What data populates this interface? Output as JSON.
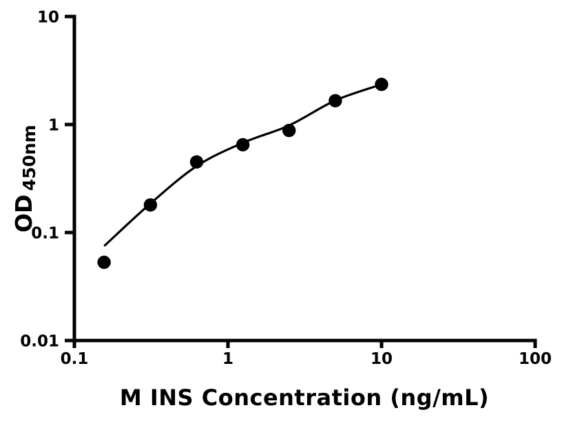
{
  "figure": {
    "background": "#ffffff",
    "foreground": "#000000"
  },
  "chart_data": {
    "type": "scatter",
    "title": "",
    "xlabel": "M INS Concentration (ng/mL)",
    "ylabel": "OD",
    "ylabel_subscript": "450nm",
    "x_scale": "log",
    "y_scale": "log",
    "xlim": [
      0.1,
      100
    ],
    "ylim": [
      0.01,
      10
    ],
    "grid": false,
    "legend": "none",
    "x_ticks": [
      {
        "value": 0.1,
        "label": "0.1"
      },
      {
        "value": 1,
        "label": "1"
      },
      {
        "value": 10,
        "label": "10"
      },
      {
        "value": 100,
        "label": "100"
      }
    ],
    "y_ticks": [
      {
        "value": 0.01,
        "label": "0.01"
      },
      {
        "value": 0.1,
        "label": "0.1"
      },
      {
        "value": 1,
        "label": "1"
      },
      {
        "value": 10,
        "label": "10"
      }
    ],
    "series": [
      {
        "name": "standard-points",
        "type": "scatter",
        "marker": "filled-circle",
        "color": "#000000",
        "points": [
          [
            0.156,
            0.053
          ],
          [
            0.3125,
            0.18
          ],
          [
            0.625,
            0.45
          ],
          [
            1.25,
            0.65
          ],
          [
            2.5,
            0.88
          ],
          [
            5,
            1.66
          ],
          [
            10,
            2.35
          ]
        ]
      }
    ],
    "trend_curve": {
      "name": "fitted-curve",
      "color": "#000000",
      "points": [
        [
          0.158,
          0.076
        ],
        [
          0.316,
          0.188
        ],
        [
          0.63,
          0.415
        ],
        [
          1.26,
          0.68
        ],
        [
          2.5,
          0.98
        ],
        [
          5,
          1.67
        ],
        [
          10,
          2.35
        ]
      ]
    }
  }
}
